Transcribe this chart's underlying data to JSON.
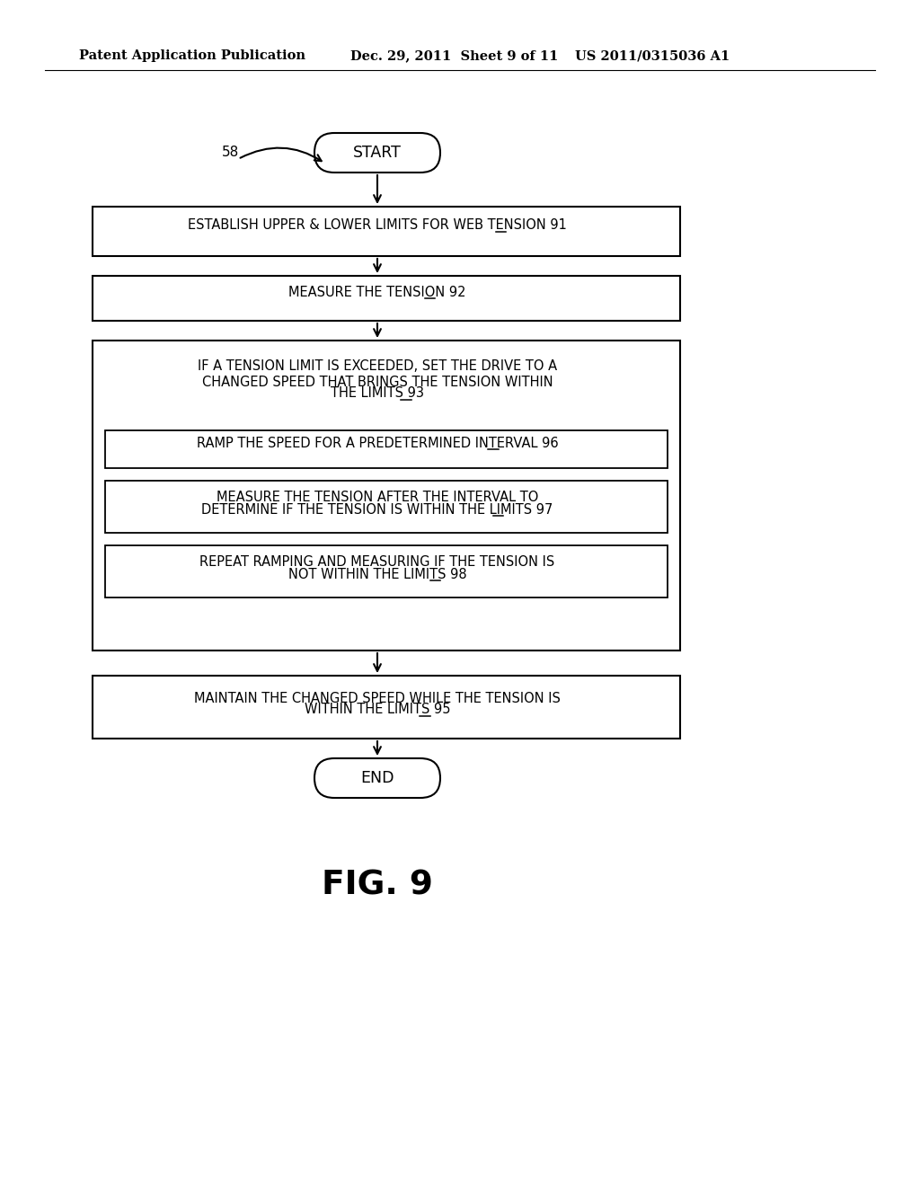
{
  "background_color": "#ffffff",
  "header_left": "Patent Application Publication",
  "header_center": "Dec. 29, 2011  Sheet 9 of 11",
  "header_right": "US 2011/0315036 A1",
  "fig_label": "FIG. 9",
  "label_58": "58",
  "start_text": "START",
  "end_text": "END",
  "box1_main": "ESTABLISH UPPER & LOWER LIMITS FOR WEB TENSION ",
  "box1_num": "91",
  "box2_main": "MEASURE THE TENSION ",
  "box2_num": "92",
  "ob_line1": "IF A TENSION LIMIT IS EXCEEDED, SET THE DRIVE TO A",
  "ob_line2": "CHANGED SPEED THAT BRINGS THE TENSION WITHIN",
  "ob_line3": "THE LIMITS ",
  "ob_num": "93",
  "ib1_main": "RAMP THE SPEED FOR A PREDETERMINED INTERVAL ",
  "ib1_num": "96",
  "ib2_line1": "MEASURE THE TENSION AFTER THE INTERVAL TO",
  "ib2_line2": "DETERMINE IF THE TENSION IS WITHIN THE LIMITS ",
  "ib2_num": "97",
  "ib3_line1": "REPEAT RAMPING AND MEASURING IF THE TENSION IS",
  "ib3_line2": "NOT WITHIN THE LIMITS ",
  "ib3_num": "98",
  "b3_line1": "MAINTAIN THE CHANGED SPEED WHILE THE TENSION IS",
  "b3_line2": "WITHIN THE LIMITS ",
  "b3_num": "95",
  "text_color": "#000000",
  "arrow_color": "#000000"
}
